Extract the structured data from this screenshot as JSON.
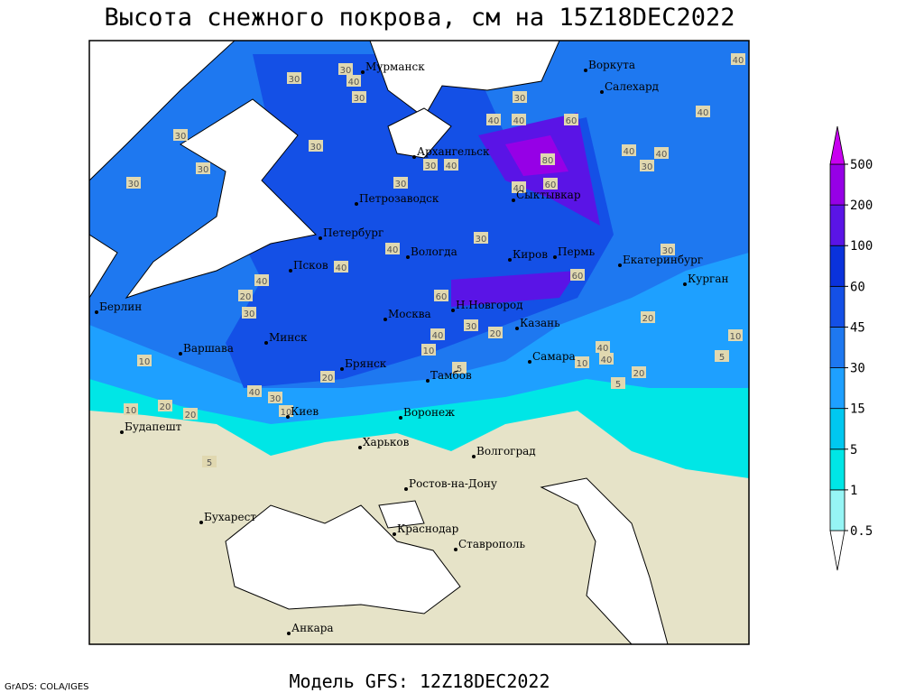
{
  "title": "Высота снежного покрова, см на 15Z18DEC2022",
  "footer": "Модель GFS: 12Z18DEC2022",
  "credit": "GrADS: COLA/IGES",
  "cities": [
    "Мурманск",
    "Воркута",
    "Салехард",
    "Архангельск",
    "Сыктывкар",
    "Петрозаводск",
    "Петербург",
    "Вологда",
    "Киров",
    "Пермь",
    "Екатеринбург",
    "Курган",
    "Псков",
    "Берлин",
    "Москва",
    "Н.Новгород",
    "Казань",
    "Минск",
    "Варшава",
    "Брянск",
    "Тамбов",
    "Самара",
    "Киев",
    "Воронеж",
    "Будапешт",
    "Харьков",
    "Волгоград",
    "Ростов-на-Дону",
    "Бухарест",
    "Краснодар",
    "Ставрополь",
    "Анкара"
  ],
  "contour_labels": [
    30,
    30,
    40,
    30,
    30,
    30,
    30,
    30,
    30,
    40,
    40,
    30,
    40,
    60,
    80,
    60,
    40,
    40,
    30,
    40,
    40,
    40,
    30,
    40,
    40,
    40,
    20,
    30,
    30,
    60,
    60,
    30,
    20,
    40,
    10,
    20,
    40,
    30,
    10,
    20,
    20,
    10,
    10,
    30,
    20,
    40,
    40,
    10,
    20,
    5,
    5,
    10,
    5,
    5
  ],
  "colorbar": {
    "levels": [
      0.5,
      1,
      5,
      15,
      30,
      45,
      60,
      100,
      200,
      500
    ],
    "colors": [
      "#ffffff",
      "#96f5f5",
      "#00e6e6",
      "#00c8f0",
      "#1ea0ff",
      "#1e78f0",
      "#1450e6",
      "#0a32dc",
      "#5a14e6",
      "#9600e6",
      "#c800f0"
    ]
  }
}
